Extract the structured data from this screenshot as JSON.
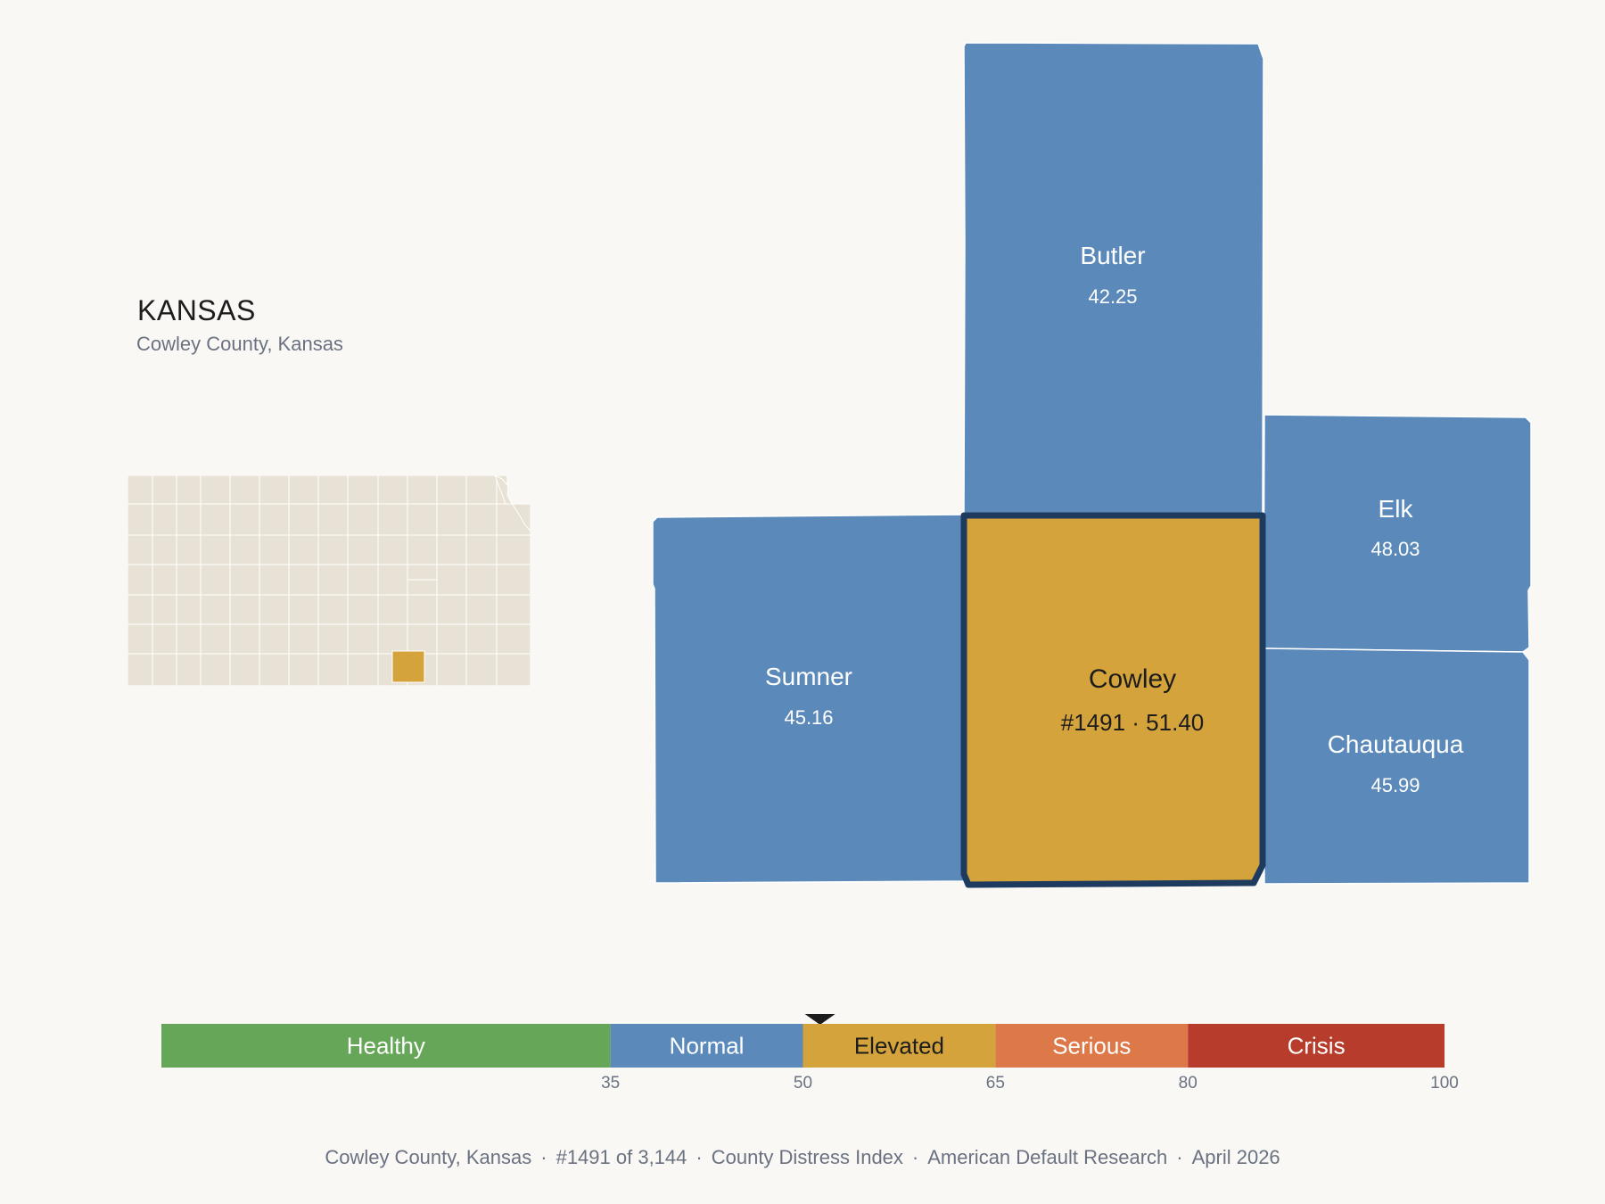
{
  "header": {
    "title": "KANSAS",
    "subtitle": "Cowley County, Kansas"
  },
  "colors": {
    "background": "#f9f8f5",
    "locator_county": "#e8e2d6",
    "locator_border": "#ffffff",
    "highlight": "#d4a33b",
    "neighbor": "#5b8aba",
    "focus_outline": "#1e3a5f",
    "text_light": "#ffffff",
    "text_dark": "#1c1c1c"
  },
  "focus_county": {
    "name": "Cowley",
    "value_label": "#1491 · 51.40",
    "rank": 1491,
    "score": 51.4
  },
  "neighbors": [
    {
      "id": "butler",
      "name": "Butler",
      "value": "42.25"
    },
    {
      "id": "elk",
      "name": "Elk",
      "value": "48.03"
    },
    {
      "id": "sumner",
      "name": "Sumner",
      "value": "45.16"
    },
    {
      "id": "chautauqua",
      "name": "Chautauqua",
      "value": "45.99"
    }
  ],
  "scale": {
    "marker_value": 51.4,
    "min": 0,
    "max": 100,
    "bands": [
      {
        "label": "Healthy",
        "from": 0,
        "to": 35,
        "color": "#66a659",
        "text": "#ffffff"
      },
      {
        "label": "Normal",
        "from": 35,
        "to": 50,
        "color": "#5b8aba",
        "text": "#ffffff"
      },
      {
        "label": "Elevated",
        "from": 50,
        "to": 65,
        "color": "#d4a33b",
        "text": "#1c1c1c"
      },
      {
        "label": "Serious",
        "from": 65,
        "to": 80,
        "color": "#dd7849",
        "text": "#ffffff"
      },
      {
        "label": "Crisis",
        "from": 80,
        "to": 100,
        "color": "#b83c2c",
        "text": "#ffffff"
      }
    ],
    "ticks": [
      "35",
      "50",
      "65",
      "80",
      "100"
    ]
  },
  "footer": {
    "place": "Cowley County, Kansas",
    "rank": "#1491 of 3,144",
    "index": "County Distress Index",
    "source": "American Default Research",
    "date": "April 2026",
    "separator": "·"
  }
}
